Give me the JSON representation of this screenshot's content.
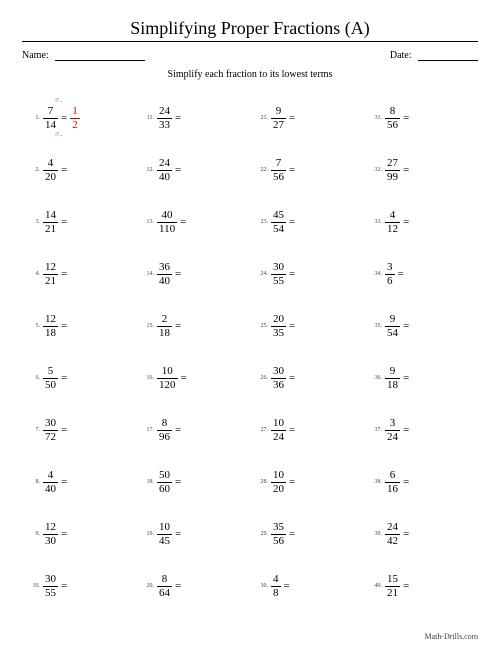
{
  "title": "Simplifying Proper Fractions (A)",
  "name_label": "Name:",
  "date_label": "Date:",
  "instruction": "Simplify each fraction to its lowest terms",
  "footer": "Math-Drills.com",
  "example_answer": {
    "num": "1",
    "den": "2",
    "annot_top": "÷7 →",
    "annot_bot": "÷7 →"
  },
  "problems": [
    {
      "n": "1",
      "num": "7",
      "den": "14"
    },
    {
      "n": "2",
      "num": "4",
      "den": "20"
    },
    {
      "n": "3",
      "num": "14",
      "den": "21"
    },
    {
      "n": "4",
      "num": "12",
      "den": "21"
    },
    {
      "n": "5",
      "num": "12",
      "den": "18"
    },
    {
      "n": "6",
      "num": "5",
      "den": "50"
    },
    {
      "n": "7",
      "num": "30",
      "den": "72"
    },
    {
      "n": "8",
      "num": "4",
      "den": "40"
    },
    {
      "n": "9",
      "num": "12",
      "den": "30"
    },
    {
      "n": "10",
      "num": "30",
      "den": "55"
    },
    {
      "n": "11",
      "num": "24",
      "den": "33"
    },
    {
      "n": "12",
      "num": "24",
      "den": "40"
    },
    {
      "n": "13",
      "num": "40",
      "den": "110"
    },
    {
      "n": "14",
      "num": "36",
      "den": "40"
    },
    {
      "n": "15",
      "num": "2",
      "den": "18"
    },
    {
      "n": "16",
      "num": "10",
      "den": "120"
    },
    {
      "n": "17",
      "num": "8",
      "den": "96"
    },
    {
      "n": "18",
      "num": "50",
      "den": "60"
    },
    {
      "n": "19",
      "num": "10",
      "den": "45"
    },
    {
      "n": "20",
      "num": "8",
      "den": "64"
    },
    {
      "n": "21",
      "num": "9",
      "den": "27"
    },
    {
      "n": "22",
      "num": "7",
      "den": "56"
    },
    {
      "n": "23",
      "num": "45",
      "den": "54"
    },
    {
      "n": "24",
      "num": "30",
      "den": "55"
    },
    {
      "n": "25",
      "num": "20",
      "den": "35"
    },
    {
      "n": "26",
      "num": "30",
      "den": "36"
    },
    {
      "n": "27",
      "num": "10",
      "den": "24"
    },
    {
      "n": "28",
      "num": "10",
      "den": "20"
    },
    {
      "n": "29",
      "num": "35",
      "den": "56"
    },
    {
      "n": "30",
      "num": "4",
      "den": "8"
    },
    {
      "n": "31",
      "num": "8",
      "den": "56"
    },
    {
      "n": "32",
      "num": "27",
      "den": "99"
    },
    {
      "n": "33",
      "num": "4",
      "den": "12"
    },
    {
      "n": "34",
      "num": "3",
      "den": "6"
    },
    {
      "n": "35",
      "num": "9",
      "den": "54"
    },
    {
      "n": "36",
      "num": "9",
      "den": "18"
    },
    {
      "n": "37",
      "num": "3",
      "den": "24"
    },
    {
      "n": "38",
      "num": "6",
      "den": "16"
    },
    {
      "n": "39",
      "num": "24",
      "den": "42"
    },
    {
      "n": "40",
      "num": "15",
      "den": "21"
    }
  ]
}
